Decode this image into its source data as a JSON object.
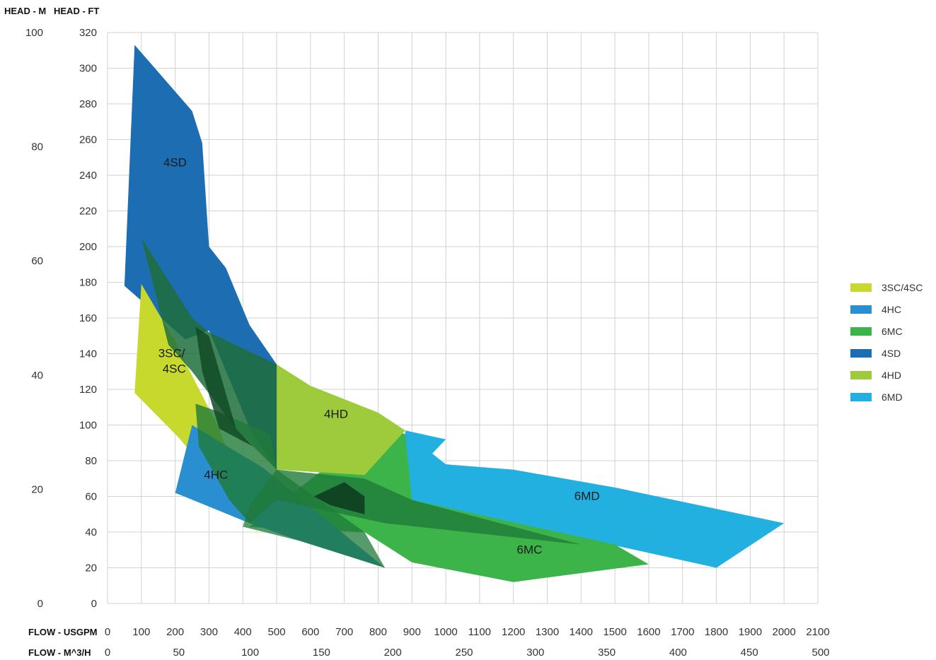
{
  "chart_data": {
    "type": "area",
    "axis_headers": {
      "head_m": "HEAD - M",
      "head_ft": "HEAD - FT",
      "flow_usgpm": "FLOW - USGPM",
      "flow_m3h": "FLOW - M^3/H"
    },
    "y_ft_ticks": [
      "0",
      "20",
      "40",
      "60",
      "80",
      "100",
      "120",
      "140",
      "160",
      "180",
      "200",
      "220",
      "240",
      "260",
      "280",
      "300",
      "320"
    ],
    "y_m_ticks": [
      "0",
      "20",
      "40",
      "60",
      "80",
      "100"
    ],
    "x_usgpm_ticks": [
      "0",
      "100",
      "200",
      "300",
      "400",
      "500",
      "600",
      "700",
      "800",
      "900",
      "1000",
      "1100",
      "1200",
      "1300",
      "1400",
      "1500",
      "1600",
      "1700",
      "1800",
      "1900",
      "2000",
      "2100"
    ],
    "x_m3h_ticks": [
      "0",
      "50",
      "100",
      "150",
      "200",
      "250",
      "300",
      "350",
      "400",
      "450",
      "500"
    ],
    "xlim_usgpm": [
      0,
      2100
    ],
    "ylim_ft": [
      0,
      320
    ],
    "grid": true,
    "legend_position": "right",
    "legend": [
      {
        "name": "3SC/4SC",
        "color": "#c8d92e"
      },
      {
        "name": "4HC",
        "color": "#2a8fd0"
      },
      {
        "name": "6MC",
        "color": "#3cb44a"
      },
      {
        "name": "4SD",
        "color": "#1d6db3"
      },
      {
        "name": "4HD",
        "color": "#9dcb3c"
      },
      {
        "name": "6MD",
        "color": "#22b0e0"
      }
    ],
    "series": [
      {
        "name": "6MD",
        "color": "#22b0e0",
        "label": "6MD",
        "label_at": [
          1380,
          58
        ],
        "points": [
          [
            880,
            97
          ],
          [
            1000,
            92
          ],
          [
            960,
            84
          ],
          [
            1000,
            78
          ],
          [
            1200,
            75
          ],
          [
            1500,
            65
          ],
          [
            1800,
            53
          ],
          [
            2000,
            45
          ],
          [
            1800,
            20
          ],
          [
            1200,
            45
          ],
          [
            880,
            58
          ]
        ]
      },
      {
        "name": "6MC",
        "color": "#3cb44a",
        "label": "6MC",
        "label_at": [
          1210,
          28
        ],
        "points": [
          [
            420,
            43
          ],
          [
            800,
            99
          ],
          [
            880,
            95
          ],
          [
            900,
            58
          ],
          [
            1500,
            33
          ],
          [
            1600,
            22
          ],
          [
            1200,
            12
          ],
          [
            900,
            23
          ],
          [
            760,
            40
          ],
          [
            400,
            43
          ]
        ]
      },
      {
        "name": "4HD",
        "color": "#9dcb3c",
        "label": "4HD",
        "label_at": [
          640,
          104
        ],
        "points": [
          [
            500,
            134
          ],
          [
            600,
            122
          ],
          [
            800,
            107
          ],
          [
            880,
            97
          ],
          [
            760,
            72
          ],
          [
            500,
            75
          ]
        ]
      },
      {
        "name": "4SD",
        "color": "#1d6db3",
        "label": "4SD",
        "label_at": [
          165,
          245
        ],
        "points": [
          [
            80,
            313
          ],
          [
            140,
            300
          ],
          [
            250,
            276
          ],
          [
            280,
            258
          ],
          [
            300,
            200
          ],
          [
            350,
            188
          ],
          [
            420,
            156
          ],
          [
            500,
            134
          ],
          [
            500,
            75
          ],
          [
            430,
            94
          ],
          [
            300,
            153
          ],
          [
            230,
            148
          ],
          [
            50,
            178
          ]
        ]
      },
      {
        "name": "3SC/4SC",
        "color": "#c8d92e",
        "label": "3SC/\n4SC",
        "label_at": [
          150,
          138
        ],
        "points": [
          [
            100,
            179
          ],
          [
            190,
            150
          ],
          [
            330,
            98
          ],
          [
            400,
            62
          ],
          [
            450,
            35
          ],
          [
            410,
            55
          ],
          [
            300,
            73
          ],
          [
            210,
            93
          ],
          [
            80,
            118
          ]
        ]
      },
      {
        "name": "4HC",
        "color": "#2a8fd0",
        "label": "4HC",
        "label_at": [
          285,
          70
        ],
        "points": [
          [
            250,
            100
          ],
          [
            460,
            76
          ],
          [
            820,
            20
          ],
          [
            570,
            35
          ],
          [
            420,
            45
          ],
          [
            200,
            62
          ]
        ]
      }
    ],
    "overlaps": [
      {
        "color": "#1e6e3c",
        "opacity": 0.85,
        "points": [
          [
            100,
            205
          ],
          [
            250,
            160
          ],
          [
            300,
            152
          ],
          [
            500,
            134
          ],
          [
            500,
            75
          ],
          [
            380,
            98
          ],
          [
            250,
            130
          ],
          [
            180,
            145
          ]
        ]
      },
      {
        "color": "#1f7a3a",
        "opacity": 0.8,
        "points": [
          [
            260,
            112
          ],
          [
            320,
            108
          ],
          [
            480,
            95
          ],
          [
            500,
            75
          ],
          [
            760,
            70
          ],
          [
            900,
            58
          ],
          [
            1400,
            33
          ],
          [
            820,
            45
          ],
          [
            500,
            58
          ],
          [
            420,
            45
          ],
          [
            360,
            58
          ],
          [
            270,
            88
          ]
        ]
      },
      {
        "color": "#104a24",
        "opacity": 0.85,
        "points": [
          [
            260,
            155
          ],
          [
            300,
            150
          ],
          [
            380,
            98
          ],
          [
            420,
            90
          ],
          [
            500,
            75
          ],
          [
            430,
            88
          ],
          [
            330,
            98
          ],
          [
            280,
            130
          ]
        ]
      },
      {
        "color": "#0f3d1f",
        "opacity": 0.9,
        "points": [
          [
            610,
            60
          ],
          [
            700,
            68
          ],
          [
            760,
            60
          ],
          [
            760,
            50
          ],
          [
            660,
            55
          ]
        ]
      },
      {
        "color": "#1f7a3a",
        "opacity": 0.75,
        "points": [
          [
            420,
            55
          ],
          [
            500,
            75
          ],
          [
            760,
            40
          ],
          [
            820,
            20
          ],
          [
            570,
            35
          ],
          [
            400,
            43
          ]
        ]
      }
    ]
  }
}
